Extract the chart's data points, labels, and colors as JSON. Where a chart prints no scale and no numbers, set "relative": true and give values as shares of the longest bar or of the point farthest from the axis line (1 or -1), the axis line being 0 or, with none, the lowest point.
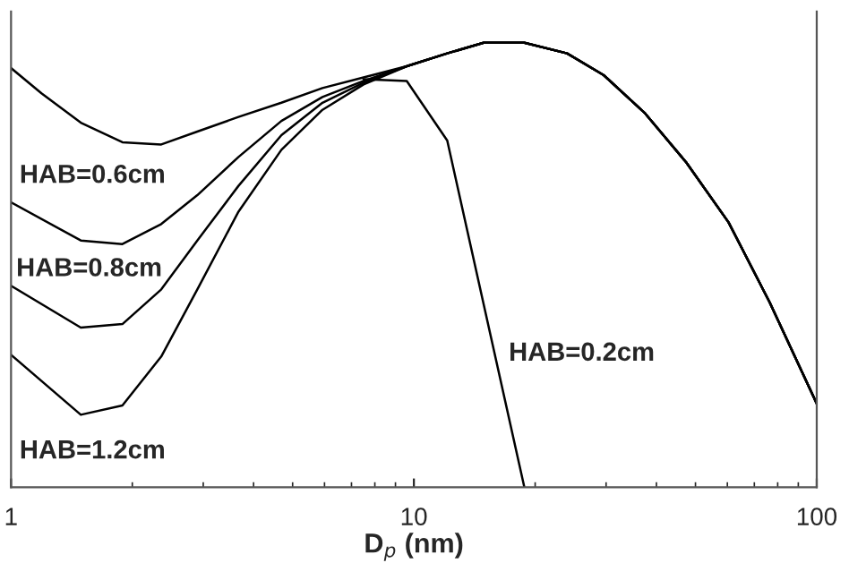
{
  "chart_data": {
    "type": "line",
    "relative": true,
    "log": "x",
    "xlim": [
      1,
      100
    ],
    "xticks": [
      1,
      10,
      100
    ],
    "xlabel": "D$_{p}$ (nm)",
    "grid": false,
    "legend": false,
    "tick_labels": "x",
    "series": [
      {
        "name": "HAB=0.6cm",
        "color": "#000000",
        "x": [
          1,
          1.19,
          1.49,
          1.89,
          2.36,
          2.9,
          3.67,
          4.69,
          5.93,
          7.5,
          9.6,
          12.1,
          14.9,
          18.8,
          24,
          29.6,
          37.5,
          47.4,
          60.4,
          76.4,
          100
        ],
        "values": [
          0.943,
          0.886,
          0.82,
          0.776,
          0.771,
          0.8,
          0.833,
          0.865,
          0.898,
          0.922,
          0.947,
          0.976,
          1,
          1,
          0.976,
          0.927,
          0.841,
          0.731,
          0.596,
          0.416,
          0.188
        ]
      },
      {
        "name": "HAB=0.8cm",
        "color": "#000000",
        "x": [
          1,
          1.49,
          1.89,
          2.36,
          2.9,
          3.67,
          4.69,
          5.93,
          7.5,
          9.6,
          12.1,
          14.9,
          18.8,
          24,
          29.6,
          37.5,
          47.4,
          60.4,
          76.4,
          100
        ],
        "values": [
          0.641,
          0.555,
          0.547,
          0.592,
          0.657,
          0.743,
          0.824,
          0.878,
          0.914,
          0.947,
          0.976,
          1,
          1,
          0.976,
          0.927,
          0.841,
          0.731,
          0.596,
          0.416,
          0.188
        ]
      },
      {
        "color": "#000000",
        "x": [
          1,
          1.49,
          1.89,
          2.36,
          2.9,
          3.67,
          4.69,
          5.93,
          7.5,
          9.6,
          12.1,
          14.9,
          18.8,
          24,
          29.6,
          37.5,
          47.4,
          60.4,
          76.4,
          100
        ],
        "values": [
          0.453,
          0.359,
          0.367,
          0.445,
          0.555,
          0.678,
          0.792,
          0.865,
          0.91,
          0.947,
          0.976,
          1,
          1,
          0.976,
          0.927,
          0.841,
          0.731,
          0.596,
          0.416,
          0.188
        ]
      },
      {
        "name": "HAB=1.2cm",
        "color": "#000000",
        "x": [
          1,
          1.49,
          1.89,
          2.36,
          2.9,
          3.67,
          4.69,
          5.93,
          7.5,
          9.6,
          12.1,
          14.9,
          18.8,
          24,
          29.6,
          37.5,
          47.4,
          60.4,
          76.4,
          100
        ],
        "values": [
          0.298,
          0.163,
          0.184,
          0.294,
          0.445,
          0.62,
          0.759,
          0.849,
          0.906,
          0.947,
          0.976,
          1,
          1,
          0.976,
          0.927,
          0.841,
          0.731,
          0.596,
          0.416,
          0.188
        ]
      },
      {
        "name": "HAB=0.2cm",
        "color": "#000000",
        "x": [
          7.5,
          9.6,
          12.1,
          18.8
        ],
        "values": [
          0.918,
          0.914,
          0.78,
          0
        ]
      }
    ]
  }
}
